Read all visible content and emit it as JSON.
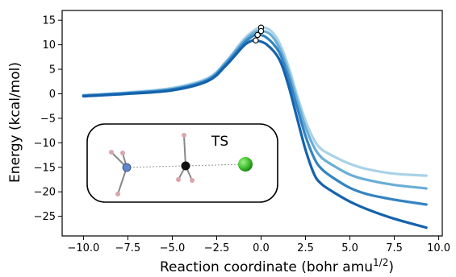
{
  "chart_data": {
    "type": "line",
    "title": "",
    "xlabel": "Reaction coordinate (bohr amu",
    "xlabel_sup": "1/2",
    "xlabel_close": ")",
    "ylabel": "Energy (kcal/mol)",
    "xlim": [
      -11.2,
      10.2
    ],
    "ylim": [
      -29,
      17
    ],
    "xticks": [
      -10.0,
      -7.5,
      -5.0,
      -2.5,
      0.0,
      2.5,
      5.0,
      7.5,
      10.0
    ],
    "xtick_labels": [
      "−10.0",
      "−7.5",
      "−5.0",
      "−2.5",
      "0.0",
      "2.5",
      "5.0",
      "7.5",
      "10.0"
    ],
    "yticks": [
      15,
      10,
      5,
      0,
      -5,
      -10,
      -15,
      -20,
      -25
    ],
    "ytick_labels": [
      "15",
      "10",
      "5",
      "0",
      "−5",
      "−10",
      "−15",
      "−20",
      "−25"
    ],
    "grid": false,
    "legend": "none",
    "series": [
      {
        "color": "#a9d2e8",
        "x": [
          -10.0,
          -7.5,
          -5.0,
          -3.0,
          -2.0,
          -1.0,
          -0.4,
          0.0,
          0.5,
          1.0,
          1.5,
          2.0,
          2.5,
          3.0,
          3.4,
          4.0,
          5.0,
          6.0,
          7.5,
          9.3
        ],
        "y": [
          -0.3,
          0.3,
          1.2,
          3.2,
          6.5,
          11.0,
          12.9,
          13.5,
          13.0,
          10.6,
          6.0,
          0.0,
          -5.5,
          -9.5,
          -11.3,
          -12.6,
          -14.3,
          -15.4,
          -16.3,
          -16.7
        ]
      },
      {
        "color": "#6aaed6",
        "x": [
          -10.0,
          -7.5,
          -5.0,
          -3.0,
          -2.0,
          -1.0,
          -0.4,
          0.0,
          0.5,
          1.0,
          1.5,
          2.0,
          2.5,
          3.0,
          3.4,
          4.0,
          5.0,
          6.0,
          7.5,
          9.3
        ],
        "y": [
          -0.3,
          0.2,
          1.0,
          3.0,
          6.3,
          10.6,
          12.5,
          12.8,
          12.2,
          9.6,
          5.0,
          -1.0,
          -6.8,
          -11.0,
          -13.0,
          -14.5,
          -16.5,
          -17.6,
          -18.6,
          -19.3
        ]
      },
      {
        "color": "#3484c2",
        "x": [
          -10.0,
          -7.5,
          -5.0,
          -3.0,
          -2.0,
          -1.0,
          -0.5,
          -0.2,
          0.3,
          1.0,
          1.5,
          2.0,
          2.5,
          3.0,
          3.4,
          4.0,
          5.0,
          6.0,
          7.5,
          9.3
        ],
        "y": [
          -0.4,
          0.1,
          0.9,
          2.8,
          6.0,
          10.2,
          11.7,
          12.0,
          11.5,
          8.6,
          3.8,
          -2.4,
          -8.6,
          -13.2,
          -15.3,
          -17.0,
          -19.2,
          -20.5,
          -21.6,
          -22.6
        ]
      },
      {
        "color": "#1462ad",
        "x": [
          -10.0,
          -7.5,
          -5.0,
          -3.0,
          -2.0,
          -1.0,
          -0.6,
          -0.3,
          0.3,
          1.0,
          1.5,
          2.0,
          2.5,
          3.0,
          3.4,
          4.0,
          5.0,
          6.0,
          7.5,
          9.3
        ],
        "y": [
          -0.5,
          0.0,
          0.7,
          2.6,
          5.7,
          9.7,
          10.7,
          10.9,
          10.1,
          7.2,
          2.2,
          -4.6,
          -11.4,
          -16.5,
          -18.4,
          -19.9,
          -22.0,
          -23.6,
          -25.5,
          -27.3
        ]
      }
    ],
    "ts_markers": [
      {
        "x": 0.0,
        "y": 13.5
      },
      {
        "x": 0.0,
        "y": 12.8
      },
      {
        "x": -0.2,
        "y": 12.0
      },
      {
        "x": -0.3,
        "y": 10.9
      }
    ],
    "inset_label": "TS"
  }
}
